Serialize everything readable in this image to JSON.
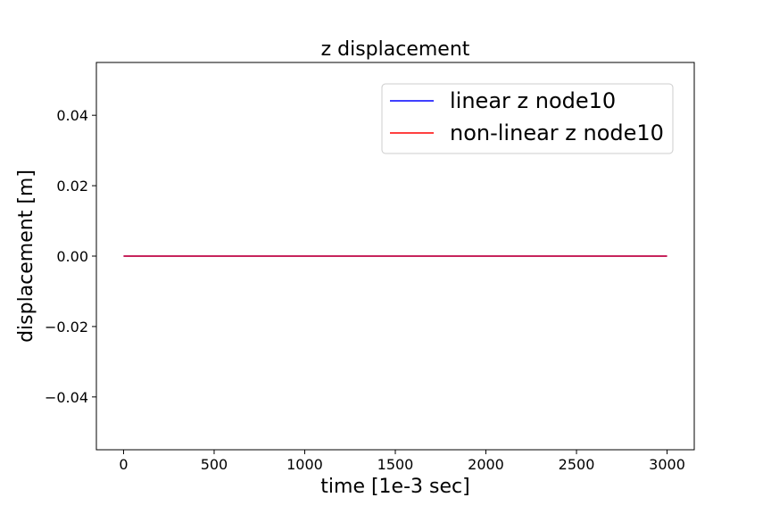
{
  "chart_data": {
    "type": "line",
    "title": "z displacement",
    "xlabel": "time [1e-3 sec]",
    "ylabel": "displacement [m]",
    "xlim": [
      -150,
      3150
    ],
    "ylim": [
      -0.055,
      0.055
    ],
    "xticks": [
      0,
      500,
      1000,
      1500,
      2000,
      2500,
      3000
    ],
    "xtick_labels": [
      "0",
      "500",
      "1000",
      "1500",
      "2000",
      "2500",
      "3000"
    ],
    "yticks": [
      0.04,
      0.02,
      0.0,
      -0.02,
      -0.04
    ],
    "ytick_labels": [
      "0.04",
      "0.02",
      "0.00",
      "−0.02",
      "−0.04"
    ],
    "grid": false,
    "legend_position": "top-right",
    "series": [
      {
        "name": "linear z node10",
        "color": "#0000ff",
        "x": [
          0,
          3000
        ],
        "y": [
          0.0,
          0.0
        ]
      },
      {
        "name": "non-linear z node10",
        "color": "#ff0000",
        "x": [
          0,
          3000
        ],
        "y": [
          0.0,
          0.0
        ]
      }
    ]
  }
}
